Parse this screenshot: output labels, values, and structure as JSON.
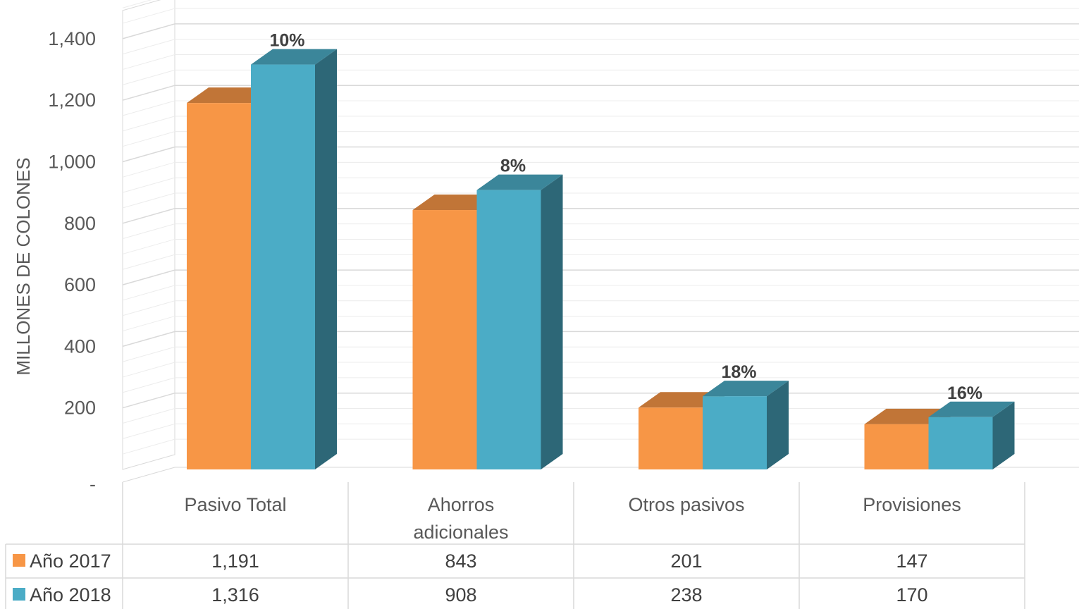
{
  "chart_data": {
    "type": "bar",
    "ylabel": "MILLONES DE COLONES",
    "ylim": [
      0,
      1400
    ],
    "yticks": [
      "-",
      "200",
      "400",
      "600",
      "800",
      "1,000",
      "1,200",
      "1,400"
    ],
    "categories": [
      [
        "Pasivo Total"
      ],
      [
        "Ahorros",
        "adicionales"
      ],
      [
        "Otros pasivos"
      ],
      [
        "Provisiones"
      ]
    ],
    "series": [
      {
        "name": "Año 2017",
        "color": "#F79646",
        "values": [
          1191,
          843,
          201,
          147
        ],
        "labels": [
          "1,191",
          "843",
          "201",
          "147"
        ]
      },
      {
        "name": "Año 2018",
        "color": "#4BACC6",
        "values": [
          1316,
          908,
          238,
          170
        ],
        "labels": [
          "1,316",
          "908",
          "238",
          "170"
        ]
      }
    ],
    "annotations": [
      "10%",
      "8%",
      "18%",
      "16%"
    ],
    "grid": true,
    "legend": "data-table"
  }
}
